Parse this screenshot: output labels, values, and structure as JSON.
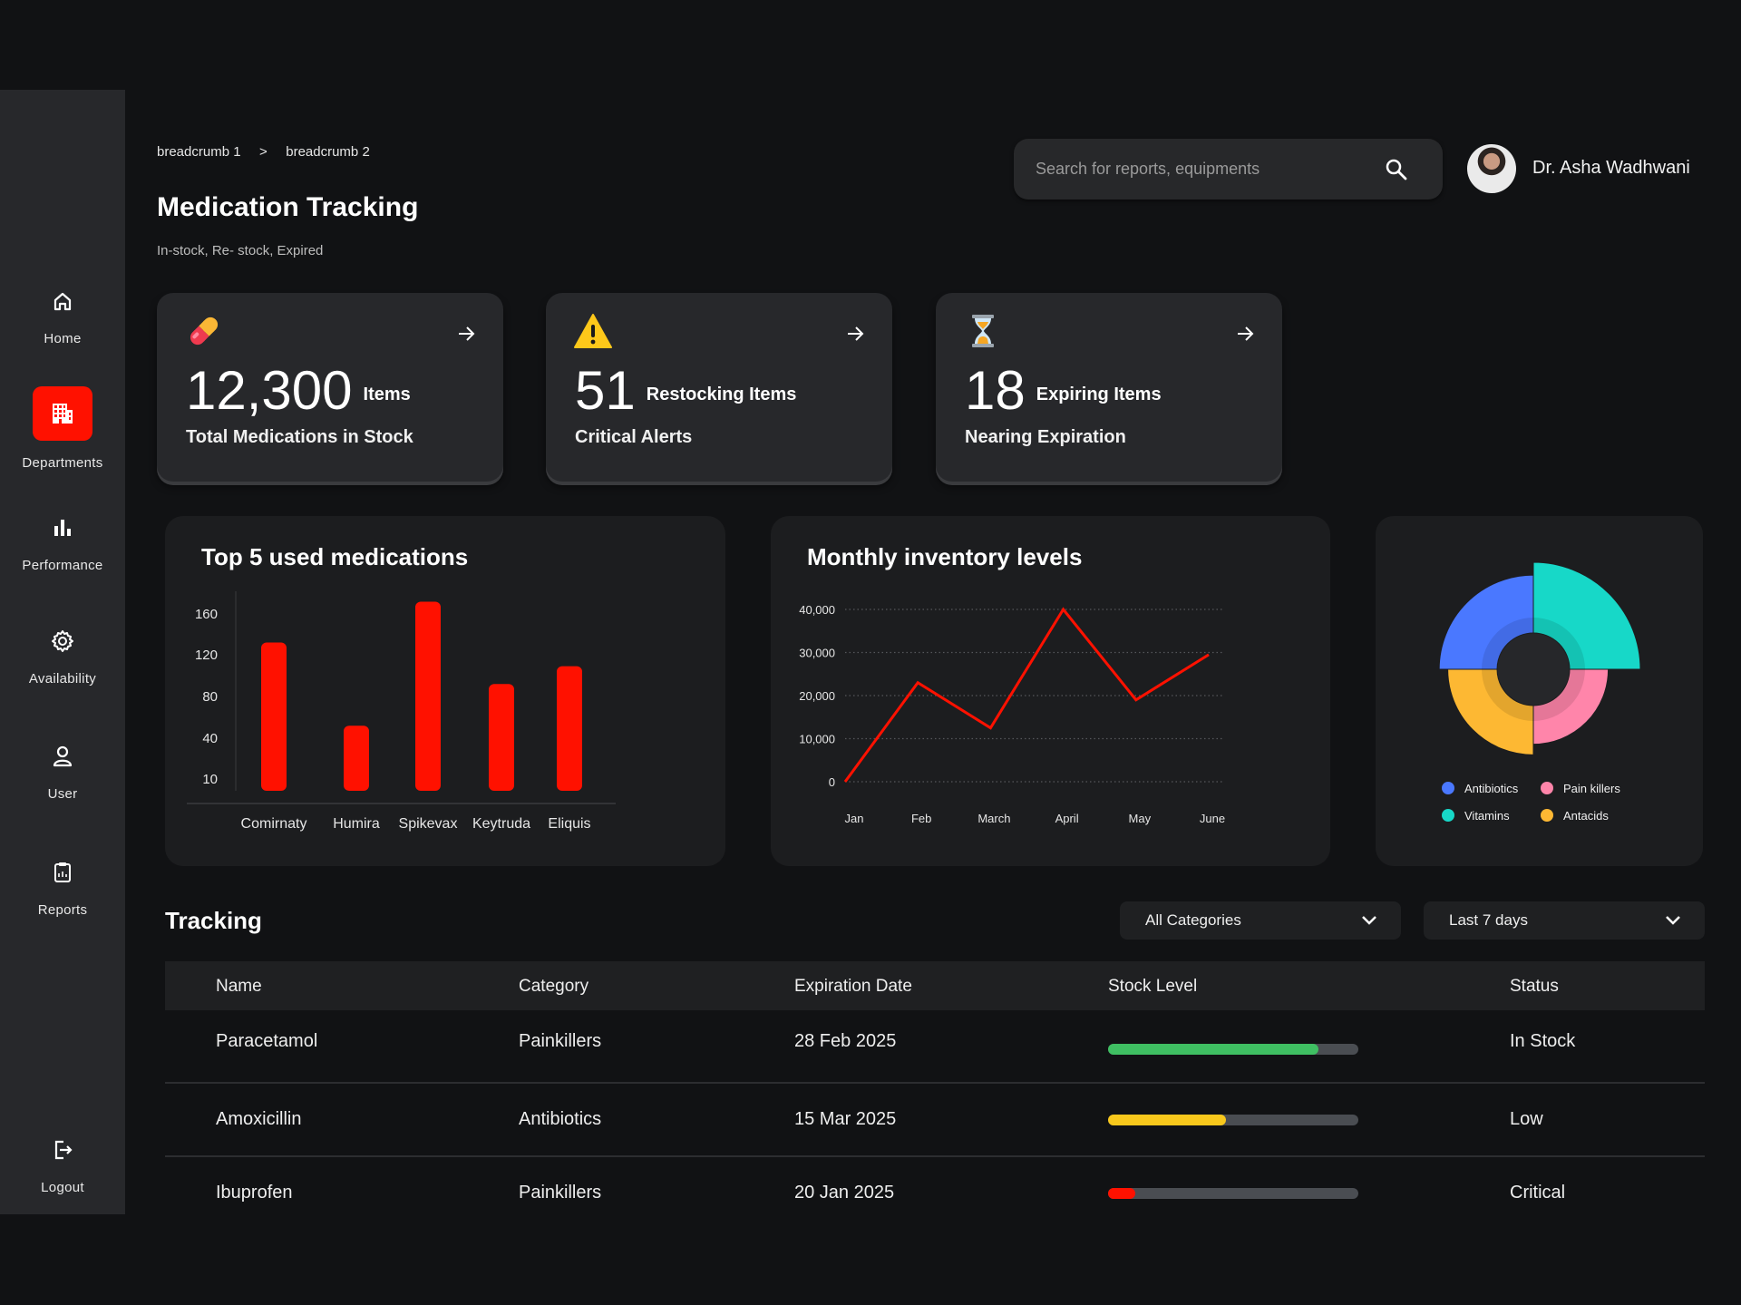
{
  "sidebar": {
    "items": [
      {
        "label": "Home",
        "icon": "home-icon"
      },
      {
        "label": "Departments",
        "icon": "building-icon"
      },
      {
        "label": "Performance",
        "icon": "bar-chart-icon"
      },
      {
        "label": "Availability",
        "icon": "gear-icon"
      },
      {
        "label": "User",
        "icon": "user-icon"
      },
      {
        "label": "Reports",
        "icon": "clipboard-icon"
      }
    ],
    "logout": "Logout",
    "active_color": "#ff1100"
  },
  "header": {
    "breadcrumbs": [
      "breadcrumb 1",
      "breadcrumb 2"
    ],
    "separator": ">",
    "title": "Medication Tracking",
    "subtitle": "In-stock, Re- stock, Expired",
    "search_placeholder": "Search for reports, equipments",
    "user_name": "Dr. Asha Wadhwani"
  },
  "stats": [
    {
      "value": "12,300",
      "unit": "Items",
      "label": "Total Medications in Stock",
      "icon": "pill-icon"
    },
    {
      "value": "51",
      "unit": "Restocking Items",
      "label": "Critical Alerts",
      "icon": "warning-icon"
    },
    {
      "value": "18",
      "unit": "Expiring Items",
      "label": "Nearing Expiration",
      "icon": "hourglass-icon"
    }
  ],
  "chart_data": [
    {
      "type": "bar",
      "title": "Top 5 used medications",
      "categories": [
        "Comirnaty",
        "Humira",
        "Spikevax",
        "Keytruda",
        "Eliquis"
      ],
      "values": [
        132,
        52,
        172,
        92,
        109
      ],
      "yticks": [
        10,
        40,
        80,
        120,
        160
      ],
      "color": "#ff1100"
    },
    {
      "type": "line",
      "title": "Monthly inventory levels",
      "x": [
        "Jan",
        "Feb",
        "March",
        "April",
        "May",
        "June"
      ],
      "values": [
        0,
        23000,
        12500,
        40000,
        19000,
        29500
      ],
      "yticks": [
        "0",
        "10,000",
        "20,000",
        "30,000",
        "40,000"
      ],
      "ylim": [
        0,
        40000
      ],
      "color": "#ff1100",
      "grid": true
    },
    {
      "type": "pie",
      "subtype": "polar-area",
      "categories": [
        "Antibiotics",
        "Pain killers",
        "Vitamins",
        "Antacids"
      ],
      "values": [
        88,
        70,
        100,
        80
      ],
      "colors": [
        "#4a78ff",
        "#ff85aa",
        "#17d8c8",
        "#fdb833"
      ],
      "legend": "bottom"
    }
  ],
  "tracking": {
    "title": "Tracking",
    "category_filter": "All Categories",
    "period_filter": "Last 7 days",
    "columns": [
      "Name",
      "Category",
      "Expiration Date",
      "Stock Level",
      "Status"
    ],
    "rows": [
      {
        "name": "Paracetamol",
        "category": "Painkillers",
        "expiry": "28 Feb 2025",
        "stock": 0.84,
        "stock_color": "#3fbf62",
        "status": "In Stock"
      },
      {
        "name": "Amoxicillin",
        "category": "Antibiotics",
        "expiry": "15 Mar 2025",
        "stock": 0.47,
        "stock_color": "#f8c81c",
        "status": "Low"
      },
      {
        "name": "Ibuprofen",
        "category": "Painkillers",
        "expiry": "20 Jan 2025",
        "stock": 0.11,
        "stock_color": "#ff1100",
        "status": "Critical"
      }
    ]
  }
}
